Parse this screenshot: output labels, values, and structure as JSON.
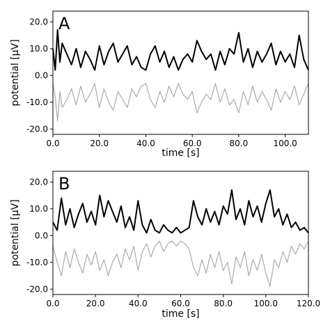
{
  "chart_data": [
    {
      "type": "line",
      "panel_label": "A",
      "xlabel": "time [s]",
      "ylabel": "potential [μV]",
      "xlim": [
        0,
        110
      ],
      "ylim": [
        -22,
        24
      ],
      "xticks": [
        0,
        20,
        40,
        60,
        80,
        100
      ],
      "xtick_labels": [
        "0.0",
        "20.0",
        "40.0",
        "60.0",
        "80.0",
        "100.0"
      ],
      "yticks": [
        -20,
        -10,
        0,
        10,
        20
      ],
      "ytick_labels": [
        "-20.0",
        "-10.0",
        "0.0",
        "10.0",
        "20.0"
      ],
      "grid": false,
      "series": [
        {
          "color": "#aaaaaa",
          "x": [
            0,
            1,
            2,
            3,
            4,
            6,
            8,
            10,
            12,
            14,
            16,
            18,
            20,
            22,
            24,
            26,
            28,
            30,
            32,
            34,
            36,
            38,
            40,
            42,
            44,
            46,
            48,
            50,
            52,
            54,
            56,
            58,
            60,
            62,
            64,
            66,
            68,
            70,
            72,
            74,
            76,
            78,
            80,
            82,
            84,
            86,
            88,
            90,
            92,
            94,
            96,
            98,
            100,
            102,
            104,
            106,
            108,
            110
          ],
          "y": [
            -3,
            -8,
            -17,
            -6,
            -12,
            -9,
            -5,
            -11,
            -4,
            -10,
            -7,
            -3,
            -12,
            -5,
            -10,
            -13,
            -6,
            -9,
            -12,
            -5,
            -8,
            -4,
            -3,
            -9,
            -12,
            -6,
            -10,
            -4,
            -8,
            -3,
            -7,
            -9,
            -6,
            -14,
            -10,
            -7,
            -9,
            -3,
            -10,
            -5,
            -11,
            -9,
            -14,
            -6,
            -11,
            -4,
            -10,
            -6,
            -9,
            -13,
            -5,
            -10,
            -6,
            -9,
            -4,
            -11,
            -7,
            -3
          ]
        },
        {
          "color": "#000000",
          "x": [
            0,
            1,
            2,
            3,
            4,
            6,
            8,
            10,
            12,
            14,
            16,
            18,
            20,
            22,
            24,
            26,
            28,
            30,
            32,
            34,
            36,
            38,
            40,
            42,
            44,
            46,
            48,
            50,
            52,
            54,
            56,
            58,
            60,
            62,
            64,
            66,
            68,
            70,
            72,
            74,
            76,
            78,
            80,
            82,
            84,
            86,
            88,
            90,
            92,
            94,
            96,
            98,
            100,
            102,
            104,
            106,
            108,
            110
          ],
          "y": [
            10,
            2,
            17,
            5,
            12,
            8,
            4,
            10,
            3,
            9,
            6,
            2,
            11,
            4,
            9,
            12,
            5,
            8,
            11,
            4,
            7,
            3,
            2,
            8,
            11,
            5,
            9,
            3,
            7,
            2,
            6,
            8,
            5,
            13,
            9,
            6,
            8,
            2,
            9,
            4,
            10,
            8,
            16,
            5,
            10,
            3,
            9,
            5,
            8,
            12,
            4,
            9,
            5,
            8,
            3,
            15,
            6,
            2
          ]
        }
      ]
    },
    {
      "type": "line",
      "panel_label": "B",
      "xlabel": "time [s]",
      "ylabel": "potential [μV]",
      "xlim": [
        0,
        120
      ],
      "ylim": [
        -22,
        24
      ],
      "xticks": [
        0,
        20,
        40,
        60,
        80,
        100,
        120
      ],
      "xtick_labels": [
        "0.0",
        "20.0",
        "40.0",
        "60.0",
        "80.0",
        "100.0",
        "120.0"
      ],
      "yticks": [
        -20,
        -10,
        0,
        10,
        20
      ],
      "ytick_labels": [
        "-20.0",
        "-10.0",
        "0.0",
        "10.0",
        "20.0"
      ],
      "grid": false,
      "series": [
        {
          "color": "#aaaaaa",
          "x": [
            0,
            2,
            4,
            6,
            8,
            10,
            12,
            14,
            16,
            18,
            20,
            22,
            24,
            26,
            28,
            30,
            32,
            34,
            36,
            38,
            40,
            42,
            44,
            46,
            48,
            50,
            52,
            54,
            56,
            58,
            60,
            62,
            64,
            66,
            68,
            70,
            72,
            74,
            76,
            78,
            80,
            82,
            84,
            86,
            88,
            90,
            92,
            94,
            96,
            98,
            100,
            102,
            104,
            106,
            108,
            110,
            112,
            114,
            116,
            118,
            120
          ],
          "y": [
            -4,
            -10,
            -15,
            -6,
            -12,
            -5,
            -10,
            -14,
            -7,
            -11,
            -6,
            -13,
            -9,
            -15,
            -10,
            -7,
            -12,
            -5,
            -9,
            -4,
            -13,
            -6,
            -3,
            -8,
            -4,
            -2,
            -6,
            -3,
            -2,
            -4,
            -2,
            -3,
            -5,
            -12,
            -15,
            -9,
            -14,
            -7,
            -12,
            -6,
            -13,
            -10,
            -18,
            -8,
            -12,
            -6,
            -15,
            -9,
            -13,
            -7,
            -14,
            -19,
            -9,
            -12,
            -6,
            -10,
            -4,
            -7,
            -3,
            -5,
            -2
          ]
        },
        {
          "color": "#000000",
          "x": [
            0,
            2,
            4,
            6,
            8,
            10,
            12,
            14,
            16,
            18,
            20,
            22,
            24,
            26,
            28,
            30,
            32,
            34,
            36,
            38,
            40,
            42,
            44,
            46,
            48,
            50,
            52,
            54,
            56,
            58,
            60,
            62,
            64,
            66,
            68,
            70,
            72,
            74,
            76,
            78,
            80,
            82,
            84,
            86,
            88,
            90,
            92,
            94,
            96,
            98,
            100,
            102,
            104,
            106,
            108,
            110,
            112,
            114,
            116,
            118,
            120
          ],
          "y": [
            5,
            2,
            14,
            4,
            10,
            3,
            8,
            12,
            5,
            9,
            4,
            15,
            7,
            13,
            9,
            5,
            11,
            3,
            7,
            2,
            13,
            4,
            1,
            6,
            2,
            1,
            4,
            2,
            1,
            3,
            1,
            2,
            3,
            13,
            7,
            4,
            10,
            5,
            9,
            4,
            11,
            8,
            17,
            6,
            10,
            4,
            13,
            7,
            11,
            5,
            12,
            17,
            7,
            10,
            4,
            8,
            3,
            5,
            2,
            3,
            1
          ]
        }
      ]
    }
  ]
}
